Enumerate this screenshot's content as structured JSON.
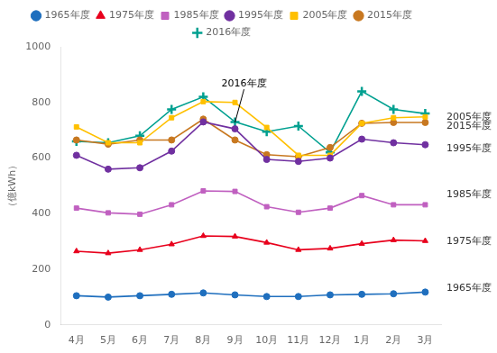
{
  "chart_data": {
    "type": "line",
    "categories": [
      "4月",
      "5月",
      "6月",
      "7月",
      "8月",
      "9月",
      "10月",
      "11月",
      "12月",
      "1月",
      "2月",
      "3月"
    ],
    "series": [
      {
        "name": "1965年度",
        "color": "#1f6fbe",
        "marker": "circle",
        "values": [
          105,
          100,
          105,
          110,
          115,
          108,
          102,
          102,
          108,
          110,
          112,
          118
        ]
      },
      {
        "name": "1975年度",
        "color": "#e8001c",
        "marker": "triangle",
        "values": [
          265,
          258,
          270,
          290,
          320,
          318,
          296,
          270,
          275,
          292,
          305,
          302
        ]
      },
      {
        "name": "1985年度",
        "color": "#c060c0",
        "marker": "square",
        "values": [
          420,
          403,
          398,
          432,
          482,
          480,
          425,
          405,
          420,
          465,
          432,
          432
        ]
      },
      {
        "name": "1995年度",
        "color": "#7030a0",
        "marker": "circle",
        "values": [
          610,
          560,
          565,
          625,
          730,
          705,
          595,
          588,
          600,
          668,
          655,
          648
        ]
      },
      {
        "name": "2005年度",
        "color": "#ffc000",
        "marker": "square",
        "values": [
          712,
          655,
          655,
          745,
          803,
          800,
          710,
          610,
          610,
          725,
          745,
          748
        ]
      },
      {
        "name": "2015年度",
        "color": "#c87820",
        "marker": "circle",
        "values": [
          665,
          650,
          665,
          665,
          740,
          665,
          612,
          605,
          638,
          725,
          728,
          728
        ]
      },
      {
        "name": "2016年度",
        "color": "#00a090",
        "marker": "plus",
        "values": [
          660,
          655,
          680,
          775,
          820,
          730,
          695,
          715,
          620,
          840,
          775,
          760
        ]
      }
    ],
    "ylabel": "（億kWh）",
    "ylim": [
      0,
      1000
    ],
    "yticks": [
      0,
      200,
      400,
      600,
      800,
      1000
    ],
    "grid": false,
    "legend": "top",
    "right_labels": [
      {
        "text": "2005年度",
        "y": 748
      },
      {
        "text": "2015年度",
        "y": 715
      },
      {
        "text": "1995年度",
        "y": 635
      },
      {
        "text": "1985年度",
        "y": 468
      },
      {
        "text": "1975年度",
        "y": 300
      },
      {
        "text": "1965年度",
        "y": 132
      }
    ],
    "annotations": [
      {
        "text": "2016年度",
        "x": "9月",
        "y": 728,
        "text_y": 870
      }
    ]
  }
}
